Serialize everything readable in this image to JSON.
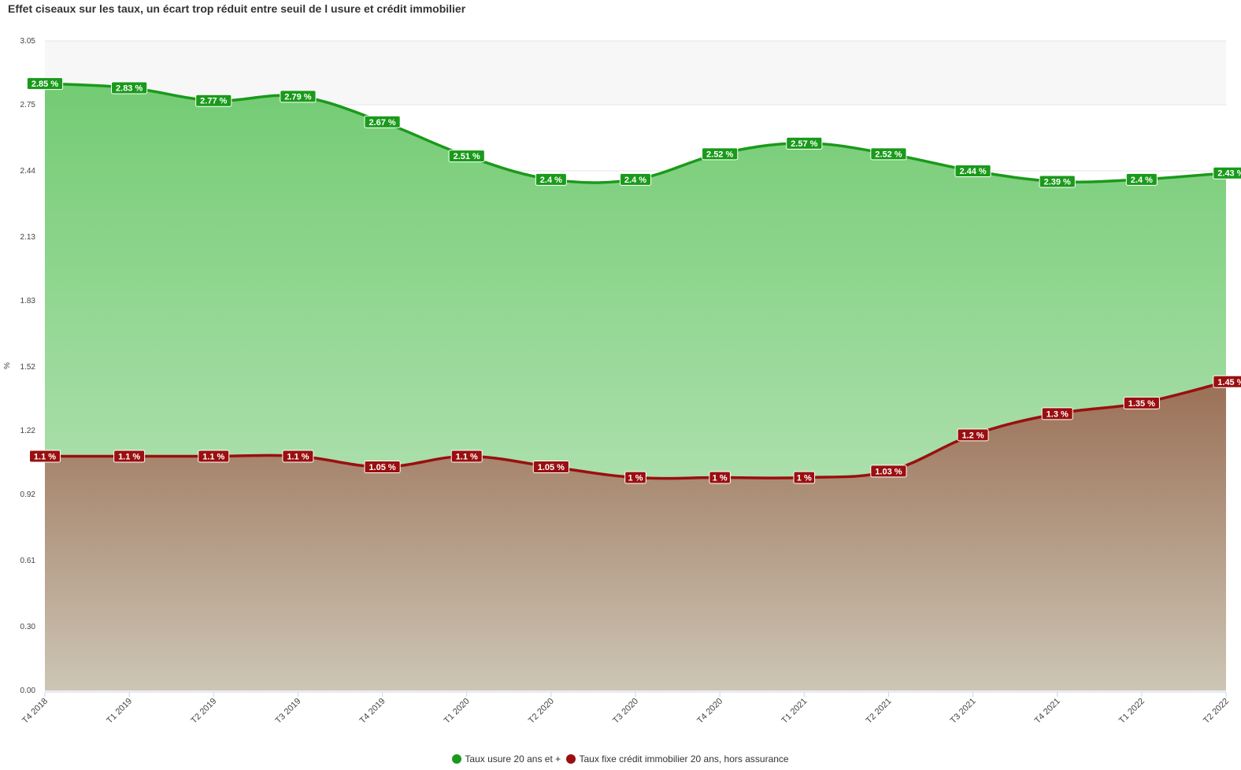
{
  "chart_data": {
    "type": "area",
    "title": "Effet ciseaux sur les taux, un écart trop réduit entre seuil de l usure et crédit immobilier",
    "ylabel": "%",
    "xlabel": "",
    "ylim": [
      0,
      3.05
    ],
    "yticks": [
      "0.00",
      "0.30",
      "0.61",
      "0.92",
      "1.22",
      "1.52",
      "1.83",
      "2.13",
      "2.44",
      "2.75",
      "3.05"
    ],
    "categories": [
      "T4 2018",
      "T1 2019",
      "T2 2019",
      "T3 2019",
      "T4 2019",
      "T1 2020",
      "T2 2020",
      "T3 2020",
      "T4 2020",
      "T1 2021",
      "T2 2021",
      "T3 2021",
      "T4 2021",
      "T1 2022",
      "T2 2022"
    ],
    "series": [
      {
        "name": "Taux usure 20 ans et +",
        "color": "#1a9a1a",
        "values": [
          2.85,
          2.83,
          2.77,
          2.79,
          2.67,
          2.51,
          2.4,
          2.4,
          2.52,
          2.57,
          2.52,
          2.44,
          2.39,
          2.4,
          2.43
        ],
        "labels": [
          "2.85 %",
          "2.83 %",
          "2.77 %",
          "2.79 %",
          "2.67 %",
          "2.51 %",
          "2.4 %",
          "2.4 %",
          "2.52 %",
          "2.57 %",
          "2.52 %",
          "2.44 %",
          "2.39 %",
          "2.4 %",
          "2.43 %"
        ]
      },
      {
        "name": "Taux fixe crédit immobilier 20 ans, hors assurance",
        "color": "#9a0f0f",
        "values": [
          1.1,
          1.1,
          1.1,
          1.1,
          1.05,
          1.1,
          1.05,
          1.0,
          1.0,
          1.0,
          1.03,
          1.2,
          1.3,
          1.35,
          1.45
        ],
        "labels": [
          "1.1 %",
          "1.1 %",
          "1.1 %",
          "1.1 %",
          "1.05 %",
          "1.1 %",
          "1.05 %",
          "1 %",
          "1 %",
          "1 %",
          "1.03 %",
          "1.2 %",
          "1.3 %",
          "1.35 %",
          "1.45 %"
        ]
      }
    ],
    "legend_position": "bottom",
    "grid": true
  }
}
